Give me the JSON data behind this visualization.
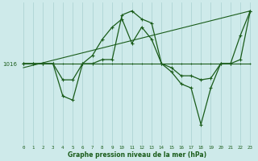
{
  "bg_color": "#ceeaea",
  "plot_bg_color": "#ceeaea",
  "line_color": "#1a5c1a",
  "grid_color": "#aed4d4",
  "xlabel": "Graphe pression niveau de la mer (hPa)",
  "ylabel_tick": "1016",
  "x_ticks": [
    0,
    1,
    2,
    3,
    4,
    5,
    6,
    7,
    8,
    9,
    10,
    11,
    12,
    13,
    14,
    15,
    16,
    17,
    18,
    19,
    20,
    21,
    22,
    23
  ],
  "xlim_min": -0.5,
  "xlim_max": 23.5,
  "ylim_bottom": 1006.0,
  "ylim_top": 1023.5,
  "y_ref": 1016.0,
  "flat_line_y": [
    1016.0,
    1016.0,
    1016.0,
    1016.0,
    1016.0,
    1016.0,
    1016.0,
    1016.0,
    1016.0,
    1016.0,
    1016.0,
    1016.0,
    1016.0,
    1016.0,
    1016.0,
    1016.0,
    1016.0,
    1016.0,
    1016.0,
    1016.0,
    1016.0,
    1016.0,
    1016.0,
    1016.0
  ],
  "trend_x": [
    0,
    23
  ],
  "trend_y": [
    1015.5,
    1022.5
  ],
  "line_upper": [
    1016.0,
    1016.0,
    1016.0,
    1016.0,
    1014.0,
    1014.0,
    1016.0,
    1017.0,
    1019.0,
    1020.5,
    1021.5,
    1018.5,
    1020.5,
    1019.0,
    1016.0,
    1015.5,
    1014.5,
    1014.5,
    1014.0,
    1014.2,
    1016.0,
    1016.0,
    1019.5,
    1022.5
  ],
  "line_lower": [
    1016.0,
    1016.0,
    1016.0,
    1016.0,
    1012.0,
    1011.5,
    1016.0,
    1016.0,
    1016.5,
    1016.5,
    1022.0,
    1022.5,
    1021.5,
    1021.0,
    1016.0,
    1015.0,
    1013.5,
    1013.0,
    1008.5,
    1013.0,
    1016.0,
    1016.0,
    1016.5,
    1022.5
  ]
}
